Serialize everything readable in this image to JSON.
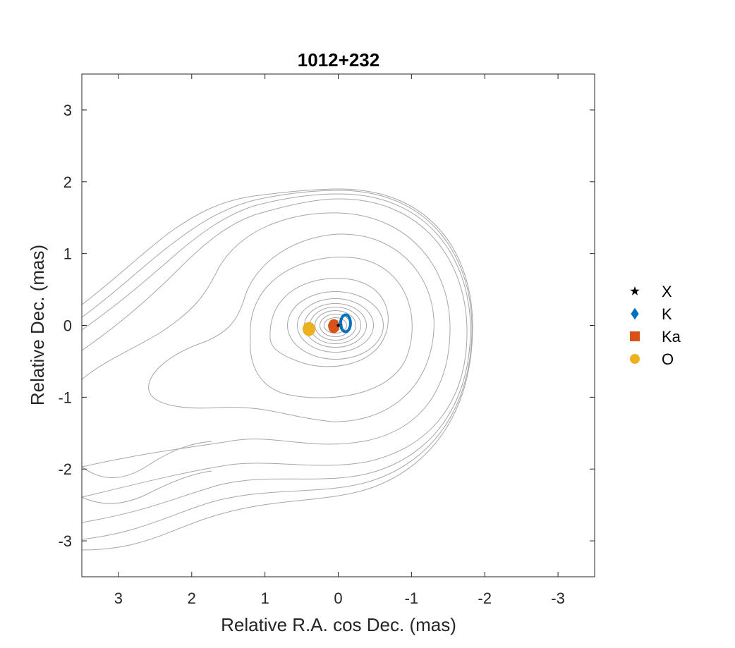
{
  "chart_data": {
    "type": "scatter",
    "title": "1012+232",
    "xlabel": "Relative R.A. cos Dec. (mas)",
    "ylabel": "Relative Dec. (mas)",
    "xlim": [
      3.5,
      -3.5
    ],
    "ylim": [
      -3.5,
      3.5
    ],
    "x_reversed": true,
    "xticks": [
      3,
      2,
      1,
      0,
      -1,
      -2,
      -3
    ],
    "xtick_labels": [
      "3",
      "2",
      "1",
      "0",
      "-1",
      "-2",
      "-3"
    ],
    "yticks": [
      3,
      2,
      1,
      0,
      -1,
      -2,
      -3
    ],
    "ytick_labels": [
      "3",
      "2",
      "1",
      "0",
      "-1",
      "-2",
      "-3"
    ],
    "grid": false,
    "legend_position": "right",
    "background_contours": {
      "color": "#a6a6a6",
      "levels": 11
    },
    "series": [
      {
        "name": "X",
        "marker": "star",
        "color": "#000000",
        "x": [
          0.0
        ],
        "y": [
          0.0
        ]
      },
      {
        "name": "K",
        "marker": "diamond",
        "color": "#0072BD",
        "x": [
          -0.1
        ],
        "y": [
          0.03
        ]
      },
      {
        "name": "Ka",
        "marker": "square",
        "color": "#D95319",
        "x": [
          0.06
        ],
        "y": [
          -0.01
        ]
      },
      {
        "name": "O",
        "marker": "circle",
        "color": "#EDB120",
        "x": [
          0.4
        ],
        "y": [
          -0.05
        ]
      }
    ]
  }
}
